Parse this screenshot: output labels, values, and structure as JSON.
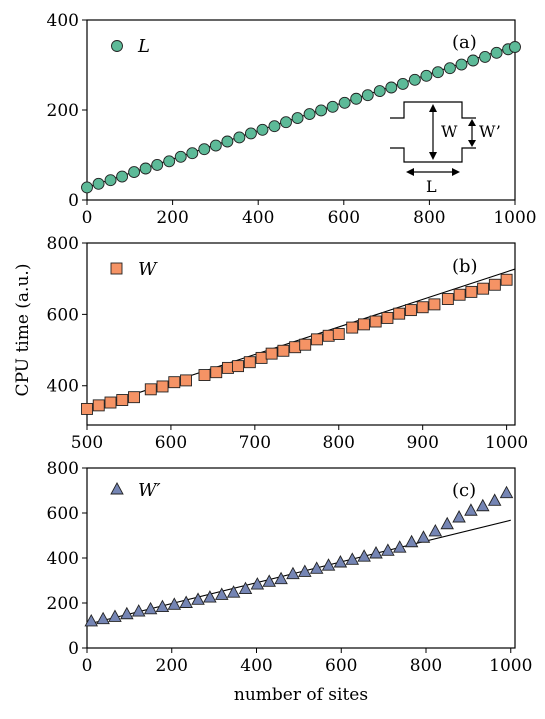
{
  "figure": {
    "ylabel": "CPU time (a.u.)",
    "xlabel": "number of sites"
  },
  "colors": {
    "L": "#5dba98",
    "W": "#f59365",
    "Wp": "#7585b4"
  },
  "chart_data": [
    {
      "type": "scatter",
      "panel": "(a)",
      "legend": "L",
      "marker": "circle",
      "xlim": [
        0,
        1000
      ],
      "ylim": [
        0,
        400
      ],
      "xticks": [
        "0",
        "200",
        "400",
        "600",
        "800",
        "1000"
      ],
      "yticks": [
        "0",
        "200",
        "400"
      ],
      "fit_line": {
        "x": [
          0,
          1000
        ],
        "y": [
          28,
          343
        ]
      },
      "inset": {
        "labels": [
          "W",
          "W’",
          "L"
        ]
      },
      "series": [
        {
          "name": "L",
          "x": [
            0,
            27,
            55,
            82,
            110,
            137,
            164,
            192,
            219,
            246,
            274,
            301,
            328,
            356,
            383,
            410,
            438,
            465,
            492,
            520,
            547,
            574,
            602,
            629,
            656,
            684,
            711,
            738,
            766,
            793,
            820,
            848,
            875,
            902,
            930,
            957,
            984,
            1000
          ],
          "y": [
            28,
            36,
            44,
            52,
            62,
            70,
            78,
            86,
            96,
            104,
            113,
            121,
            130,
            139,
            148,
            156,
            164,
            173,
            182,
            191,
            199,
            207,
            216,
            225,
            233,
            242,
            250,
            258,
            267,
            276,
            284,
            293,
            301,
            310,
            318,
            327,
            335,
            340
          ]
        }
      ]
    },
    {
      "type": "scatter",
      "panel": "(b)",
      "legend": "W",
      "marker": "square",
      "xlim": [
        500,
        1010
      ],
      "ylim": [
        290,
        800
      ],
      "xticks": [
        "500",
        "600",
        "700",
        "800",
        "900",
        "1000"
      ],
      "yticks": [
        "400",
        "600",
        "800"
      ],
      "fit_line": {
        "x": [
          500,
          1010
        ],
        "y": [
          333,
          727
        ]
      },
      "series": [
        {
          "name": "W",
          "x": [
            500,
            514,
            528,
            542,
            556,
            576,
            590,
            604,
            618,
            640,
            654,
            668,
            680,
            694,
            708,
            720,
            734,
            748,
            760,
            774,
            788,
            800,
            816,
            830,
            844,
            858,
            872,
            886,
            900,
            914,
            930,
            944,
            958,
            972,
            986,
            1000
          ],
          "y": [
            335,
            345,
            353,
            360,
            368,
            390,
            398,
            410,
            415,
            430,
            438,
            450,
            455,
            466,
            478,
            490,
            498,
            508,
            515,
            530,
            540,
            545,
            563,
            572,
            580,
            590,
            602,
            612,
            620,
            628,
            643,
            655,
            663,
            672,
            683,
            697
          ]
        }
      ]
    },
    {
      "type": "scatter",
      "panel": "(c)",
      "legend": "W′",
      "marker": "triangle",
      "xlim": [
        0,
        1010
      ],
      "ylim": [
        0,
        800
      ],
      "xticks": [
        "0",
        "200",
        "400",
        "600",
        "800",
        "1000"
      ],
      "yticks": [
        "0",
        "200",
        "400",
        "600",
        "800"
      ],
      "fit_line": {
        "x": [
          0,
          1000
        ],
        "y": [
          105,
          568
        ]
      },
      "series": [
        {
          "name": "W′",
          "x": [
            10,
            38,
            66,
            94,
            122,
            150,
            178,
            206,
            234,
            262,
            290,
            318,
            346,
            374,
            402,
            430,
            458,
            486,
            514,
            542,
            570,
            598,
            626,
            654,
            682,
            710,
            738,
            766,
            794,
            822,
            850,
            878,
            906,
            934,
            962,
            990
          ],
          "y": [
            118,
            128,
            138,
            150,
            162,
            172,
            182,
            192,
            200,
            214,
            224,
            236,
            246,
            262,
            282,
            294,
            306,
            328,
            338,
            352,
            366,
            380,
            392,
            406,
            420,
            432,
            446,
            470,
            490,
            518,
            550,
            580,
            610,
            630,
            654,
            688
          ]
        }
      ]
    }
  ]
}
